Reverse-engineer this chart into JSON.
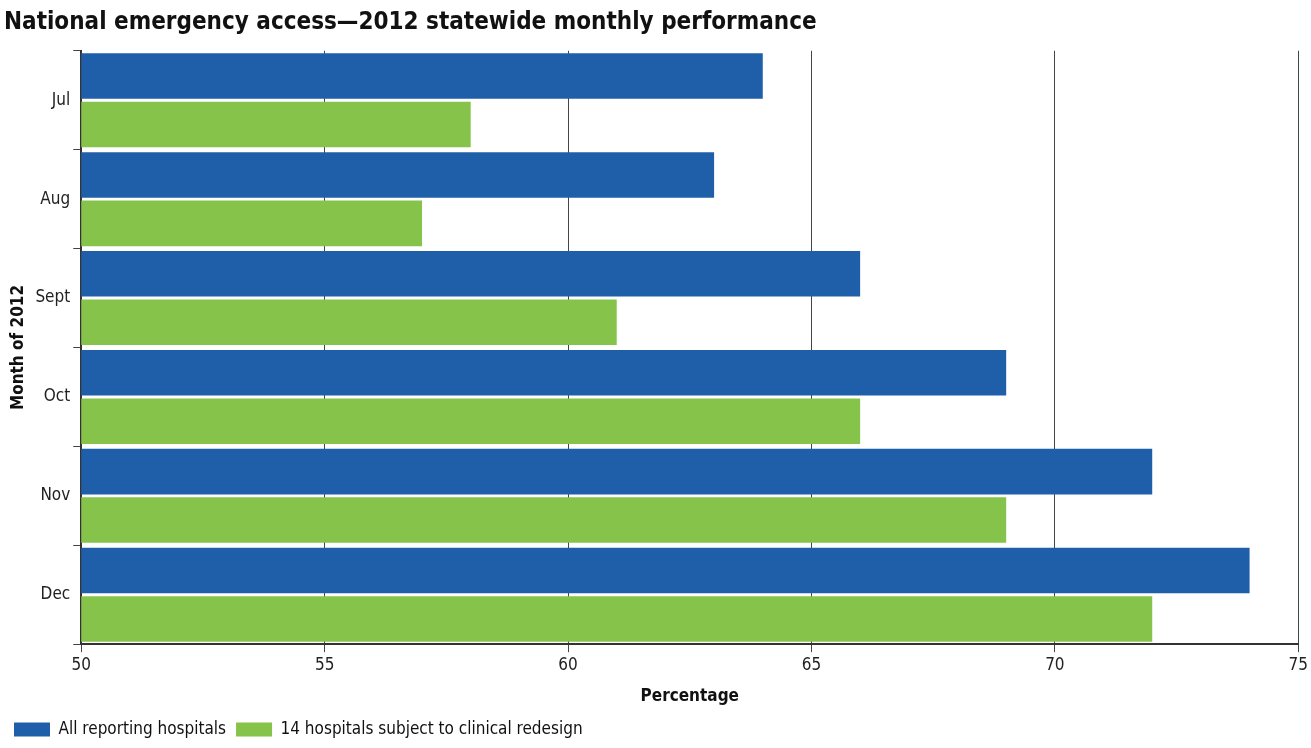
{
  "chart_data": {
    "type": "bar",
    "orientation": "horizontal",
    "title": "National emergency access—2012 statewide monthly performance",
    "xlabel": "Percentage",
    "ylabel": "Month of 2012",
    "categories": [
      "Jul",
      "Aug",
      "Sept",
      "Oct",
      "Nov",
      "Dec"
    ],
    "series": [
      {
        "name": "All reporting hospitals",
        "color": "#1f5fa9",
        "values": [
          64,
          63,
          66,
          69,
          72,
          74
        ]
      },
      {
        "name": "14 hospitals subject to clinical redesign",
        "color": "#86c34a",
        "values": [
          58,
          57,
          61,
          66,
          69,
          72
        ]
      }
    ],
    "xlim": [
      50,
      75
    ],
    "xticks": [
      50,
      55,
      60,
      65,
      70,
      75
    ],
    "grid": "x",
    "legend": "bottom left"
  }
}
